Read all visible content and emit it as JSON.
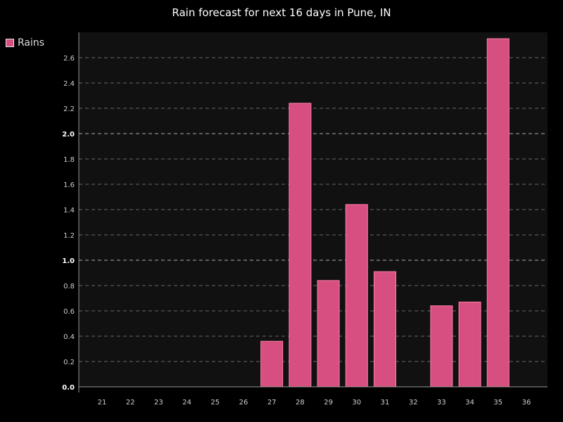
{
  "chart_data": {
    "type": "bar",
    "title": "Rain forecast for next 16 days in Pune, IN",
    "categories": [
      "21",
      "22",
      "23",
      "24",
      "25",
      "26",
      "27",
      "28",
      "29",
      "30",
      "31",
      "32",
      "33",
      "34",
      "35",
      "36"
    ],
    "series": [
      {
        "name": "Rains",
        "values": [
          0,
          0,
          0,
          0,
          0,
          0,
          0.36,
          2.24,
          0.84,
          1.44,
          0.91,
          0,
          0.64,
          0.67,
          2.75,
          0
        ]
      }
    ],
    "y_ticks": [
      "0.0",
      "0.2",
      "0.4",
      "0.6",
      "0.8",
      "1.0",
      "1.2",
      "1.4",
      "1.6",
      "1.8",
      "2.0",
      "2.2",
      "2.4",
      "2.6"
    ],
    "ylim": [
      0,
      2.8
    ],
    "xlabel": "",
    "ylabel": "",
    "grid": true,
    "legend": "top-left",
    "colors": {
      "background": "#000000",
      "plot_background": "#111111",
      "bar_fill": "#d64f80",
      "bar_border": "#ff7fa8",
      "grid": "#666666",
      "axis": "#999999"
    }
  }
}
